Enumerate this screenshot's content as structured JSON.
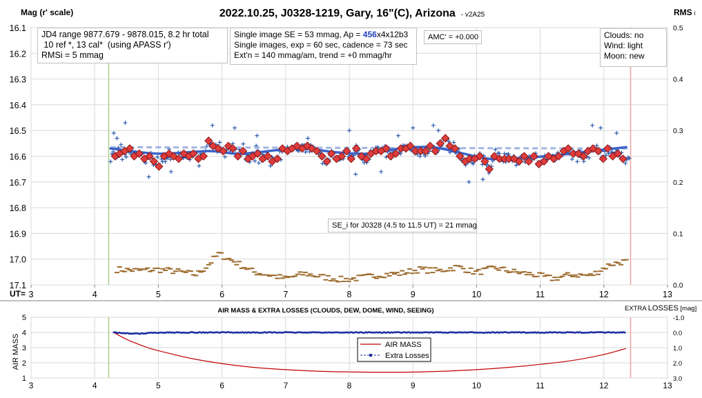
{
  "colors": {
    "ref_points": "#1f4fa8",
    "binned_fill": "#e03c3c",
    "binned_edge": "#8b1a1a",
    "trend": "#3a63c8",
    "model_dashed": "#9fb4e0",
    "rms": "#9c6a2c",
    "airmass": "#c00000",
    "extra_losses": "#1f2fa0",
    "start_line": "#a8d08d",
    "end_line": "#f4a0a0"
  },
  "top": {
    "title": "2022.10.25, J0328-1219, Gary, 16\"(C), Arizona",
    "version": "- v2A25",
    "ylabel_left": "Mag (r' scale)",
    "ylabel_right": "RMS",
    "ylabel_right_sub": "i",
    "x_prefix": "UT=",
    "info1": [
      "JD4 range 9877.679 - 9878.015, 8.2 hr total",
      " 10 ref *, 13 cal*  (using APASS r')",
      "RMSi = 5 mmag"
    ],
    "info2_line1_a": "Single image SE = 53 mmag, Ap = ",
    "info2_line1_b": "456",
    "info2_line1_c": "x4x12b3",
    "info2_line2": "Single images, exp = 60 sec, cadence = 73 sec",
    "info2_line3": "Ext'n = 140 mmag/am, trend = +0 mmag/hr",
    "amc": "AMC' = +0.000",
    "conditions": [
      "Clouds: no",
      "Wind: light",
      "Moon: new"
    ],
    "se_note": "SE_i for J0328 (4.5 to 11.5 UT) = 21 mmag"
  },
  "bottom": {
    "title": "AIR MASS & EXTRA LOSSES (CLOUDS, DEW, DOME, WIND, SEEING)",
    "right_title_a": "EXTRA ",
    "right_title_b": "LOSSES",
    "right_title_c": " [mag]",
    "ylabel_left": "AIR MASS",
    "legend": [
      "AIR MASS",
      "Extra Losses"
    ]
  },
  "chart_data": [
    {
      "type": "scatter",
      "title": "2022.10.25, J0328-1219, Gary, 16\"(C), Arizona",
      "xlabel": "UT",
      "ylabel": "Mag (r' scale)",
      "y2label": "RMS i",
      "xlim": [
        3,
        13
      ],
      "ylim": [
        17.1,
        16.1
      ],
      "y2lim": [
        0,
        0.5
      ],
      "xticks": [
        "3",
        "4",
        "5",
        "6",
        "7",
        "8",
        "9",
        "10",
        "11",
        "12",
        "13"
      ],
      "yticks": [
        "16.1",
        "16.2",
        "16.3",
        "16.4",
        "16.5",
        "16.6",
        "16.7",
        "16.8",
        "16.9",
        "17.0",
        "17.1"
      ],
      "y2ticks": [
        "0.0",
        "0.1",
        "0.2",
        "0.3",
        "0.4",
        "0.5"
      ],
      "session_start_ut": 4.22,
      "session_end_ut": 12.42,
      "grid": true,
      "binned_series": {
        "x": [
          4.32,
          4.39,
          4.47,
          4.55,
          4.62,
          4.7,
          4.78,
          4.86,
          4.93,
          5.01,
          5.09,
          5.17,
          5.24,
          5.32,
          5.4,
          5.48,
          5.55,
          5.63,
          5.71,
          5.79,
          5.86,
          5.94,
          6.02,
          6.1,
          6.17,
          6.25,
          6.33,
          6.41,
          6.48,
          6.56,
          6.64,
          6.72,
          6.79,
          6.87,
          6.95,
          7.03,
          7.1,
          7.18,
          7.26,
          7.34,
          7.41,
          7.49,
          7.57,
          7.65,
          7.72,
          7.8,
          7.88,
          7.96,
          8.03,
          8.11,
          8.19,
          8.27,
          8.34,
          8.42,
          8.5,
          8.58,
          8.65,
          8.73,
          8.81,
          8.89,
          8.96,
          9.04,
          9.12,
          9.2,
          9.27,
          9.35,
          9.43,
          9.51,
          9.58,
          9.66,
          9.74,
          9.82,
          9.89,
          9.97,
          10.05,
          10.13,
          10.2,
          10.28,
          10.36,
          10.44,
          10.51,
          10.59,
          10.67,
          10.75,
          10.82,
          10.9,
          10.98,
          11.06,
          11.13,
          11.21,
          11.29,
          11.37,
          11.44,
          11.52,
          11.6,
          11.68,
          11.75,
          11.83,
          11.91,
          11.99,
          12.06,
          12.14,
          12.22,
          12.3
        ],
        "y": [
          16.6,
          16.59,
          16.58,
          16.57,
          16.6,
          16.59,
          16.61,
          16.6,
          16.62,
          16.64,
          16.6,
          16.59,
          16.6,
          16.61,
          16.59,
          16.6,
          16.59,
          16.61,
          16.6,
          16.54,
          16.56,
          16.57,
          16.58,
          16.56,
          16.57,
          16.6,
          16.58,
          16.61,
          16.6,
          16.59,
          16.61,
          16.6,
          16.62,
          16.61,
          16.57,
          16.58,
          16.57,
          16.56,
          16.57,
          16.56,
          16.57,
          16.58,
          16.6,
          16.62,
          16.59,
          16.61,
          16.6,
          16.58,
          16.61,
          16.57,
          16.6,
          16.61,
          16.59,
          16.58,
          16.58,
          16.57,
          16.6,
          16.59,
          16.57,
          16.57,
          16.56,
          16.58,
          16.58,
          16.58,
          16.56,
          16.58,
          16.55,
          16.53,
          16.56,
          16.57,
          16.6,
          16.62,
          16.61,
          16.61,
          16.6,
          16.62,
          16.65,
          16.6,
          16.61,
          16.61,
          16.61,
          16.61,
          16.62,
          16.6,
          16.62,
          16.6,
          16.63,
          16.62,
          16.6,
          16.61,
          16.6,
          16.58,
          16.57,
          16.59,
          16.59,
          16.6,
          16.58,
          16.57,
          16.58,
          16.61,
          16.57,
          16.6,
          16.59,
          16.61
        ]
      },
      "trend_series": {
        "x": [
          4.25,
          5.0,
          5.8,
          6.3,
          7.2,
          7.8,
          8.3,
          8.8,
          9.3,
          9.8,
          10.2,
          10.8,
          11.3,
          11.8,
          12.35
        ],
        "y": [
          16.57,
          16.59,
          16.58,
          16.59,
          16.57,
          16.585,
          16.59,
          16.57,
          16.565,
          16.59,
          16.61,
          16.605,
          16.595,
          16.58,
          16.565
        ]
      },
      "model_dashed": {
        "x": [
          4.25,
          12.4
        ],
        "y": [
          16.565,
          16.57
        ]
      },
      "ref_points": {
        "n": 400,
        "x_range": [
          4.25,
          12.4
        ],
        "scatter_sd_mag": 0.03,
        "x": [
          4.3,
          4.35,
          4.48,
          4.85,
          5.2,
          5.85,
          6.2,
          6.55,
          7.35,
          8.0,
          8.1,
          8.5,
          8.77,
          9.0,
          9.32,
          9.4,
          9.88,
          10.1,
          11.82,
          11.95,
          12.2
        ],
        "y": [
          16.51,
          16.53,
          16.47,
          16.68,
          16.66,
          16.48,
          16.49,
          16.52,
          16.53,
          16.5,
          16.67,
          16.66,
          16.52,
          16.49,
          16.48,
          16.5,
          16.7,
          16.69,
          16.48,
          16.49,
          16.51
        ]
      },
      "rms_series": {
        "x": [
          4.35,
          4.7,
          5.0,
          5.3,
          5.6,
          5.75,
          5.95,
          6.2,
          6.5,
          6.8,
          7.0,
          7.3,
          7.6,
          7.9,
          8.2,
          8.5,
          8.8,
          9.1,
          9.4,
          9.7,
          10.0,
          10.3,
          10.6,
          10.9,
          11.2,
          11.5,
          11.8,
          12.1,
          12.3
        ],
        "y": [
          0.03,
          0.028,
          0.03,
          0.026,
          0.02,
          0.035,
          0.06,
          0.045,
          0.025,
          0.018,
          0.012,
          0.022,
          0.015,
          0.01,
          0.014,
          0.02,
          0.022,
          0.03,
          0.027,
          0.035,
          0.024,
          0.033,
          0.025,
          0.02,
          0.012,
          0.02,
          0.018,
          0.04,
          0.045
        ]
      }
    },
    {
      "type": "line",
      "title": "AIR MASS & EXTRA LOSSES (CLOUDS, DEW, DOME, WIND, SEEING)",
      "xlabel": "UT",
      "ylabel": "AIR MASS",
      "y2label": "EXTRA LOSSES [mag]",
      "xlim": [
        3,
        13
      ],
      "ylim": [
        1,
        5
      ],
      "y2lim": [
        -1.0,
        3.0
      ],
      "xticks": [
        "3",
        "4",
        "5",
        "6",
        "7",
        "8",
        "9",
        "10",
        "11",
        "12",
        "13"
      ],
      "yticks": [
        "1",
        "2",
        "3",
        "4",
        "5"
      ],
      "y2ticks": [
        "-1.0",
        "0.0",
        "1.0",
        "2.0",
        "3.0"
      ],
      "series": [
        {
          "name": "AIR MASS",
          "x": [
            4.3,
            4.5,
            4.8,
            5.0,
            5.5,
            6.0,
            6.5,
            7.0,
            7.5,
            8.0,
            8.5,
            9.0,
            9.5,
            10.0,
            10.5,
            11.0,
            11.5,
            12.0,
            12.35
          ],
          "y": [
            4.0,
            3.55,
            3.05,
            2.8,
            2.3,
            1.95,
            1.7,
            1.55,
            1.45,
            1.4,
            1.38,
            1.39,
            1.45,
            1.55,
            1.7,
            1.9,
            2.15,
            2.55,
            2.95
          ]
        },
        {
          "name": "Extra Losses",
          "x": [
            4.3,
            4.5,
            4.7,
            4.9,
            5.2,
            6.0,
            8.0,
            10.0,
            12.0,
            12.35
          ],
          "y": [
            0.0,
            0.05,
            0.08,
            0.02,
            0.0,
            0.0,
            0.0,
            0.0,
            0.0,
            0.0
          ]
        }
      ]
    }
  ]
}
